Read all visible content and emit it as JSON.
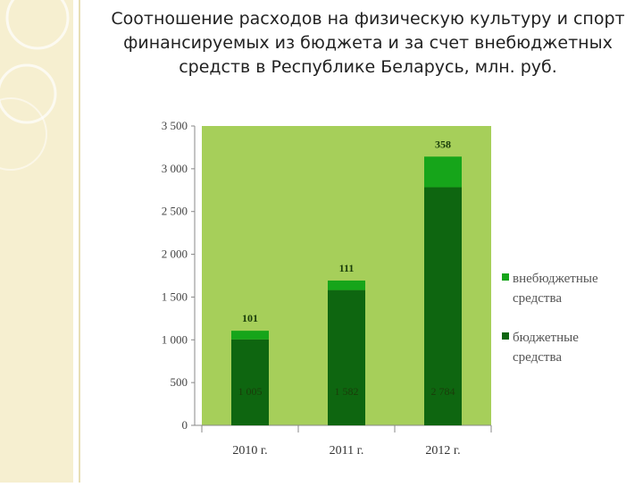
{
  "slide": {
    "title": "Соотношение расходов на физическую культуру и спорт финансируемых из бюджета и за счет внебюджетных средств в Республике Беларусь, млн. руб."
  },
  "colors": {
    "plot_background": "#a6cf5a",
    "budget": "#0e6610",
    "extra_budget": "#16a51a",
    "side_panel": "#f6efd0"
  },
  "chart_data": {
    "type": "bar",
    "stacked": true,
    "title": "",
    "xlabel": "",
    "ylabel": "",
    "categories": [
      "2010 г.",
      "2011 г.",
      "2012 г."
    ],
    "series": [
      {
        "name": "бюджетные средства",
        "values": [
          1005,
          1582,
          2784
        ],
        "labels": [
          "1 005",
          "1 582",
          "2 784"
        ]
      },
      {
        "name": "внебюджетные средства",
        "values": [
          101,
          111,
          358
        ],
        "labels": [
          "101",
          "111",
          "358"
        ]
      }
    ],
    "ylim": [
      0,
      3500
    ],
    "yticks": [
      0,
      500,
      1000,
      1500,
      2000,
      2500,
      3000,
      3500
    ],
    "ytick_labels": [
      "0",
      "500",
      "1 000",
      "1 500",
      "2 000",
      "2 500",
      "3 000",
      "3 500"
    ],
    "legend": {
      "position": "right",
      "entries": [
        {
          "series": 1,
          "lines": [
            "внебюджетные",
            "средства"
          ]
        },
        {
          "series": 0,
          "lines": [
            "бюджетные",
            "средства"
          ]
        }
      ]
    },
    "grid": false
  }
}
